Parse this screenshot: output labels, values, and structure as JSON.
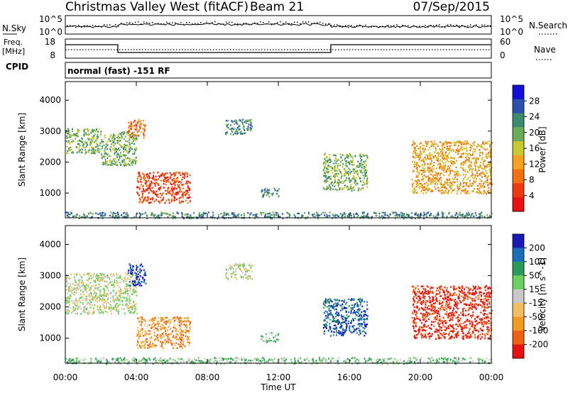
{
  "header": {
    "station": "Christmas Valley West (fitACF)",
    "beam": "Beam 21",
    "date": "07/Sep/2015"
  },
  "top_panels": {
    "nsky_label": "N.Sky",
    "nsky_ticks": [
      "10^5",
      "10^0"
    ],
    "nsearch_label": "N.Search",
    "nsearch_ticks": [
      "10^5",
      "10^0"
    ],
    "freq_label_1": "Freq.",
    "freq_label_2": "[MHz]",
    "freq_ticks": [
      "18",
      "8"
    ],
    "nave_label": "Nave",
    "nave_ticks": [
      "60",
      "0"
    ],
    "cpid_label": "CPID",
    "cpid_text": "normal (fast) -151 RF"
  },
  "chart_data": [
    {
      "type": "heatmap",
      "name": "power-panel",
      "ylabel": "Slant Range [km]",
      "yticks": [
        1000,
        2000,
        3000,
        4000
      ],
      "ylim": [
        200,
        4600
      ],
      "xlim": [
        0,
        24
      ],
      "colorbar_label": "Power [dB]",
      "colorbar_ticks": [
        "28",
        "24",
        "20",
        "16",
        "12",
        "8",
        "4"
      ],
      "colorbar_colors": [
        "#1010d8",
        "#2a50b0",
        "#3a8a70",
        "#6aaa58",
        "#c8c830",
        "#f5a020",
        "#f27010",
        "#ee3a10",
        "#e81010"
      ],
      "regions": [
        {
          "t0": 0.0,
          "t1": 24.0,
          "r0": 200,
          "r1": 400,
          "c": 2
        },
        {
          "t0": 0.0,
          "t1": 2.0,
          "r0": 2300,
          "r1": 3100,
          "c": 3
        },
        {
          "t0": 2.0,
          "t1": 4.0,
          "r0": 1900,
          "r1": 3000,
          "c": 3
        },
        {
          "t0": 3.5,
          "t1": 4.5,
          "r0": 2800,
          "r1": 3400,
          "c": 6
        },
        {
          "t0": 4.0,
          "t1": 7.0,
          "r0": 700,
          "r1": 1700,
          "c": 7
        },
        {
          "t0": 9.0,
          "t1": 10.5,
          "r0": 2900,
          "r1": 3400,
          "c": 2
        },
        {
          "t0": 11.0,
          "t1": 12.0,
          "r0": 900,
          "r1": 1200,
          "c": 2
        },
        {
          "t0": 14.5,
          "t1": 17.0,
          "r0": 1100,
          "r1": 2300,
          "c": 3
        },
        {
          "t0": 19.5,
          "t1": 24.0,
          "r0": 1000,
          "r1": 2700,
          "c": 5
        }
      ]
    },
    {
      "type": "heatmap",
      "name": "velocity-panel",
      "ylabel": "Slant Range [km]",
      "yticks": [
        1000,
        2000,
        3000,
        4000
      ],
      "ylim": [
        200,
        4600
      ],
      "xlim": [
        0,
        24
      ],
      "xticks": [
        "00:00",
        "04:00",
        "08:00",
        "12:00",
        "16:00",
        "20:00",
        "00:00"
      ],
      "xlabel": "Time UT",
      "colorbar_label": "Velocity [m s^-1]",
      "colorbar_ticks": [
        "200",
        "100",
        "50",
        "15",
        "-15",
        "-50",
        "-100",
        "-200"
      ],
      "colorbar_colors": [
        "#1a1ab8",
        "#1a6fb8",
        "#2a9a5a",
        "#6cd060",
        "#c8c8c8",
        "#f0c060",
        "#f59a20",
        "#f06010",
        "#e81010"
      ],
      "regions": [
        {
          "t0": 0.0,
          "t1": 24.0,
          "r0": 200,
          "r1": 400,
          "c": 3
        },
        {
          "t0": 0.0,
          "t1": 4.0,
          "r0": 1800,
          "r1": 3100,
          "c": 4
        },
        {
          "t0": 3.5,
          "t1": 4.5,
          "r0": 2700,
          "r1": 3400,
          "c": 0
        },
        {
          "t0": 4.0,
          "t1": 7.0,
          "r0": 700,
          "r1": 1700,
          "c": 6
        },
        {
          "t0": 9.0,
          "t1": 10.5,
          "r0": 2900,
          "r1": 3400,
          "c": 4
        },
        {
          "t0": 11.0,
          "t1": 12.0,
          "r0": 900,
          "r1": 1200,
          "c": 3
        },
        {
          "t0": 14.5,
          "t1": 17.0,
          "r0": 1100,
          "r1": 2300,
          "c": 1
        },
        {
          "t0": 19.5,
          "t1": 24.0,
          "r0": 1000,
          "r1": 2700,
          "c": 8
        }
      ]
    }
  ]
}
